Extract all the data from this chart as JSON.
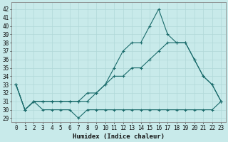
{
  "xlabel": "Humidex (Indice chaleur)",
  "ylabel": "",
  "bg_color": "#c8eaea",
  "grid_color": "#b0d8d8",
  "line_color": "#1a6b6b",
  "xlim": [
    -0.5,
    23.5
  ],
  "ylim": [
    28.5,
    42.8
  ],
  "yticks": [
    29,
    30,
    31,
    32,
    33,
    34,
    35,
    36,
    37,
    38,
    39,
    40,
    41,
    42
  ],
  "xticks": [
    0,
    1,
    2,
    3,
    4,
    5,
    6,
    7,
    8,
    9,
    10,
    11,
    12,
    13,
    14,
    15,
    16,
    17,
    18,
    19,
    20,
    21,
    22,
    23
  ],
  "line1_x": [
    0,
    1,
    2,
    3,
    4,
    5,
    6,
    7,
    8,
    9,
    10,
    11,
    12,
    13,
    14,
    15,
    16,
    17,
    18,
    19,
    20,
    21,
    22,
    23
  ],
  "line1_y": [
    33,
    30,
    31,
    30,
    30,
    30,
    30,
    29,
    30,
    30,
    30,
    30,
    30,
    30,
    30,
    30,
    30,
    30,
    30,
    30,
    30,
    30,
    30,
    31
  ],
  "line2_x": [
    0,
    1,
    2,
    3,
    4,
    5,
    6,
    7,
    8,
    9,
    10,
    11,
    12,
    13,
    14,
    15,
    16,
    17,
    18,
    19,
    20,
    21,
    22,
    23
  ],
  "line2_y": [
    33,
    30,
    31,
    31,
    31,
    31,
    31,
    31,
    31,
    32,
    33,
    35,
    37,
    38,
    38,
    40,
    42,
    39,
    38,
    38,
    36,
    34,
    33,
    31
  ],
  "line3_x": [
    0,
    1,
    2,
    3,
    4,
    5,
    6,
    7,
    8,
    9,
    10,
    11,
    12,
    13,
    14,
    15,
    16,
    17,
    18,
    19,
    20,
    21,
    22,
    23
  ],
  "line3_y": [
    33,
    30,
    31,
    31,
    31,
    31,
    31,
    31,
    32,
    32,
    33,
    34,
    34,
    35,
    35,
    36,
    37,
    38,
    38,
    38,
    36,
    34,
    33,
    31
  ]
}
